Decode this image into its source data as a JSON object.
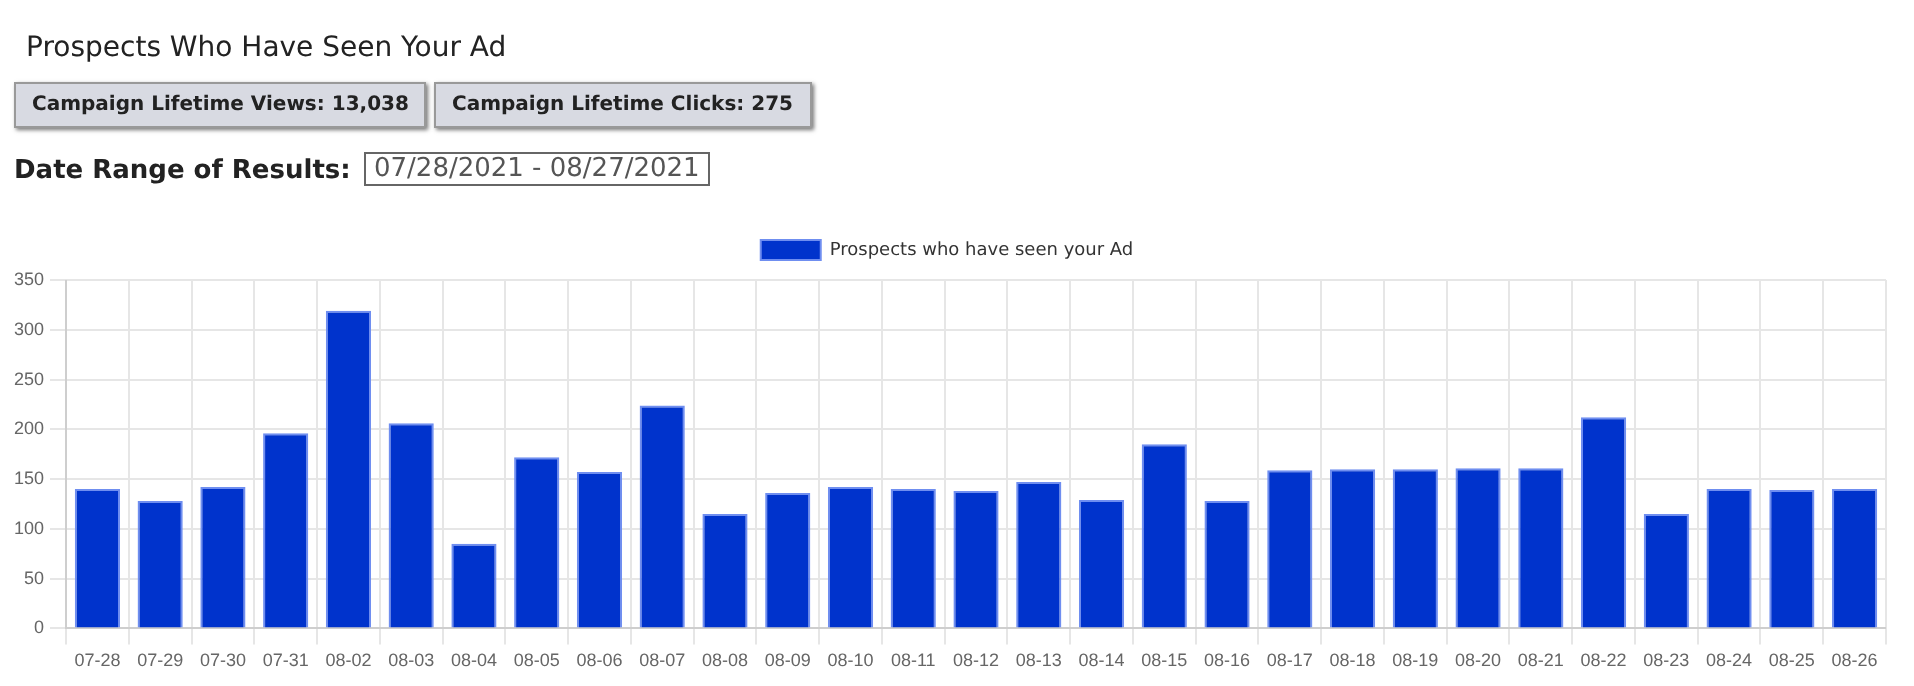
{
  "chart_data": {
    "type": "bar",
    "title": "Prospects Who Have Seen Your Ad",
    "annotations": [
      "Campaign Lifetime Views: 13,038",
      "Campaign Lifetime Clicks: 275",
      "Date Range of Results:",
      "07/28/2021 - 08/27/2021"
    ],
    "categories": [
      "07-28",
      "07-29",
      "07-30",
      "07-31",
      "08-02",
      "08-03",
      "08-04",
      "08-05",
      "08-06",
      "08-07",
      "08-08",
      "08-09",
      "08-10",
      "08-11",
      "08-12",
      "08-13",
      "08-14",
      "08-15",
      "08-16",
      "08-17",
      "08-18",
      "08-19",
      "08-20",
      "08-21",
      "08-22",
      "08-23",
      "08-24",
      "08-25",
      "08-26"
    ],
    "series": [
      {
        "name": "Prospects who have seen your Ad",
        "color": "#0033cc",
        "values": [
          140,
          128,
          142,
          196,
          319,
          206,
          85,
          172,
          157,
          224,
          115,
          136,
          142,
          140,
          138,
          147,
          129,
          185,
          128,
          159,
          160,
          160,
          161,
          161,
          212,
          115,
          140,
          139,
          140
        ]
      }
    ],
    "ylim": [
      0,
      350
    ],
    "yticks": [
      0,
      50,
      100,
      150,
      200,
      250,
      300,
      350
    ],
    "grid": true,
    "legend": "top"
  }
}
